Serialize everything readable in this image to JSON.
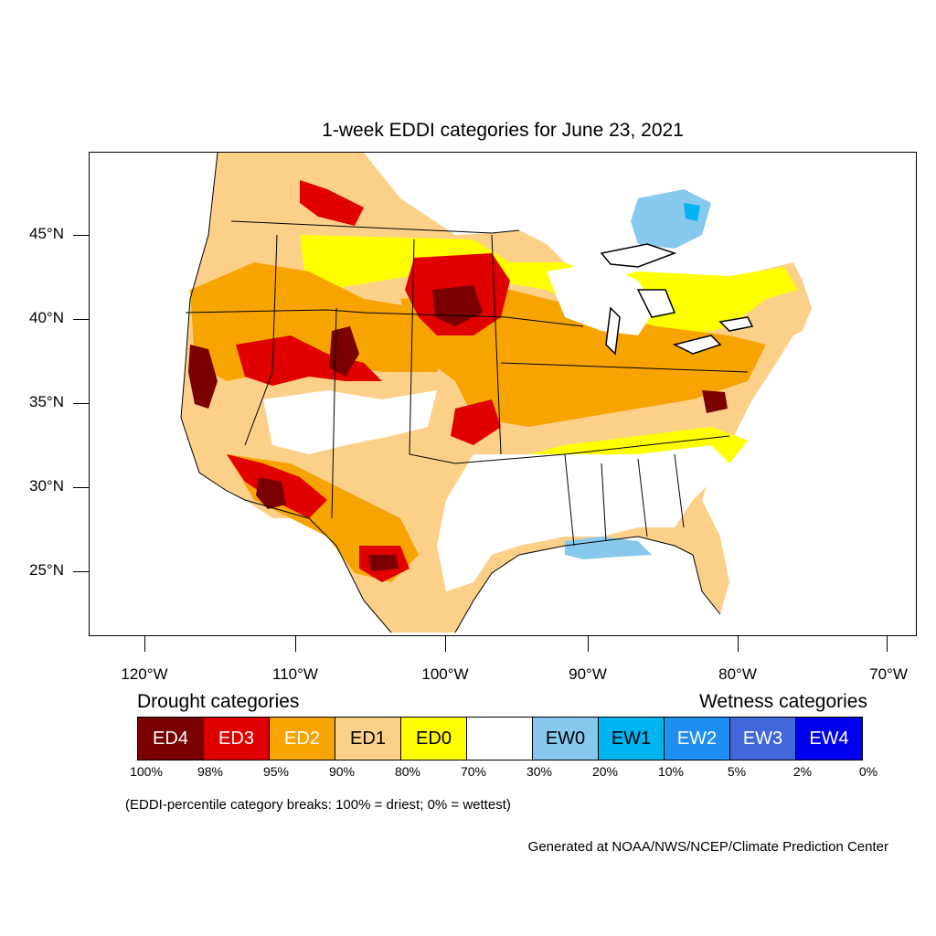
{
  "title": "1-week EDDI categories for June 23, 2021",
  "lat_labels": [
    "45°N",
    "40°N",
    "35°N",
    "30°N",
    "25°N"
  ],
  "lon_labels": [
    "120°W",
    "110°W",
    "100°W",
    "90°W",
    "80°W",
    "70°W"
  ],
  "legend": {
    "drought_title": "Drought categories",
    "wetness_title": "Wetness categories",
    "categories": [
      {
        "label": "ED4",
        "color": "#7a0000",
        "text_color": "#ffffff"
      },
      {
        "label": "ED3",
        "color": "#e00000",
        "text_color": "#ffffff"
      },
      {
        "label": "ED2",
        "color": "#f7a400",
        "text_color": "#ffffff"
      },
      {
        "label": "ED1",
        "color": "#fdd08a",
        "text_color": "#000000"
      },
      {
        "label": "ED0",
        "color": "#ffff00",
        "text_color": "#000000"
      },
      {
        "label": "",
        "color": "#ffffff",
        "text_color": "#000000"
      },
      {
        "label": "EW0",
        "color": "#87c8ee",
        "text_color": "#000000"
      },
      {
        "label": "EW1",
        "color": "#00b4f0",
        "text_color": "#000000"
      },
      {
        "label": "EW2",
        "color": "#1e8ef0",
        "text_color": "#ffffff"
      },
      {
        "label": "EW3",
        "color": "#4068d8",
        "text_color": "#ffffff"
      },
      {
        "label": "EW4",
        "color": "#0000f0",
        "text_color": "#ffffff"
      }
    ],
    "breaks": [
      "100%",
      "98%",
      "95%",
      "90%",
      "80%",
      "70%",
      "30%",
      "20%",
      "10%",
      "5%",
      "2%",
      "0%"
    ]
  },
  "note": "(EDDI-percentile category breaks: 100% = driest; 0% = wettest)",
  "credit": "Generated at NOAA/NWS/NCEP/Climate Prediction Center"
}
